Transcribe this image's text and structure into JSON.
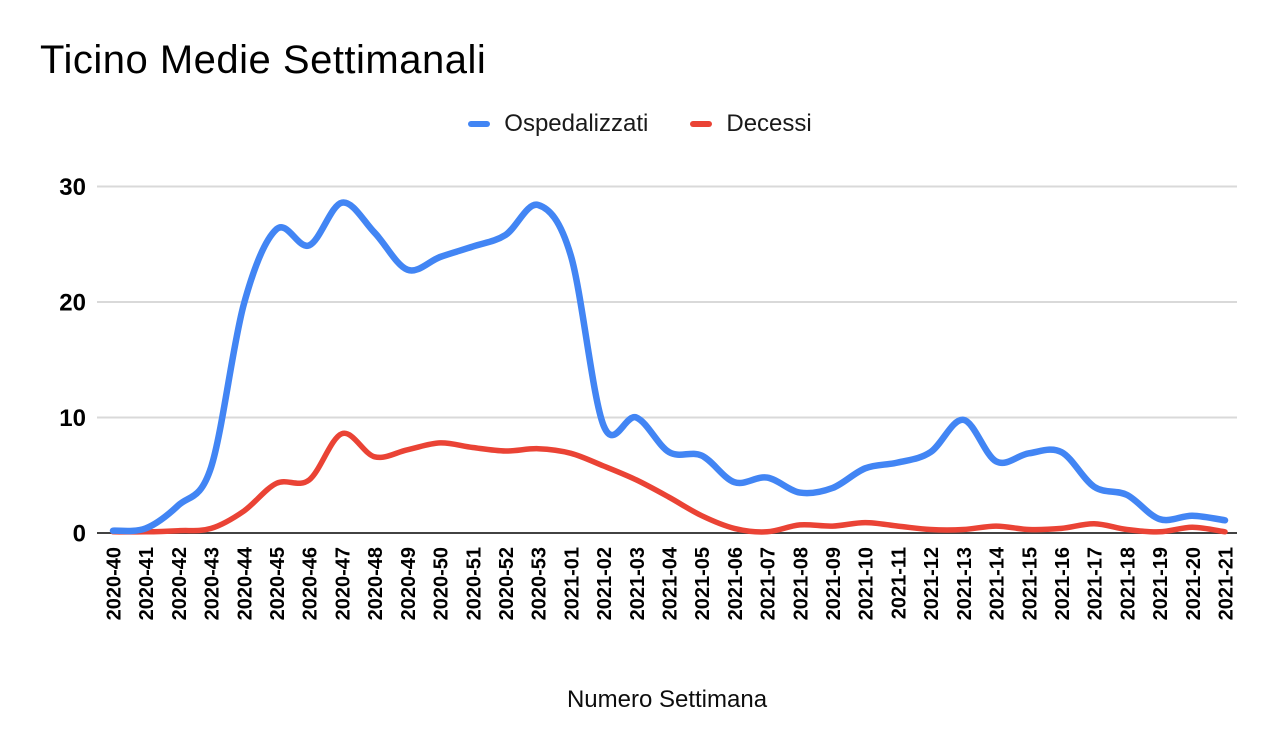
{
  "page": {
    "background": "#ffffff"
  },
  "chart_data": {
    "type": "line",
    "title": "Ticino Medie Settimanali",
    "xlabel": "Numero Settimana",
    "ylabel": "",
    "ylim": [
      0,
      30
    ],
    "yticks": [
      0,
      10,
      20,
      30
    ],
    "grid": true,
    "legend_position": "top",
    "line_style": "smooth",
    "grid_color": "#d9d9d9",
    "axis_color": "#424242",
    "tick_text_color": "#000000",
    "categories": [
      "2020-40",
      "2020-41",
      "2020-42",
      "2020-43",
      "2020-44",
      "2020-45",
      "2020-46",
      "2020-47",
      "2020-48",
      "2020-49",
      "2020-50",
      "2020-51",
      "2020-52",
      "2020-53",
      "2021-01",
      "2021-02",
      "2021-03",
      "2021-04",
      "2021-05",
      "2021-06",
      "2021-07",
      "2021-08",
      "2021-09",
      "2021-10",
      "2021-11",
      "2021-12",
      "2021-13",
      "2021-14",
      "2021-15",
      "2021-16",
      "2021-17",
      "2021-18",
      "2021-19",
      "2021-20",
      "2021-21"
    ],
    "series": [
      {
        "name": "Ospedalizzati",
        "color": "#4285F4",
        "values": [
          0.2,
          0.4,
          2.4,
          5.7,
          19.8,
          26.3,
          24.9,
          28.6,
          26.0,
          22.8,
          23.9,
          24.8,
          25.8,
          28.4,
          24.0,
          9.3,
          10.0,
          7.0,
          6.7,
          4.4,
          4.8,
          3.5,
          3.9,
          5.6,
          6.1,
          7.0,
          9.8,
          6.2,
          6.9,
          7.0,
          4.0,
          3.3,
          1.2,
          1.5,
          1.1
        ]
      },
      {
        "name": "Decessi",
        "color": "#EA4335",
        "values": [
          0.1,
          0.1,
          0.2,
          0.4,
          1.9,
          4.3,
          4.6,
          8.6,
          6.6,
          7.2,
          7.8,
          7.4,
          7.1,
          7.3,
          6.9,
          5.8,
          4.6,
          3.1,
          1.5,
          0.4,
          0.1,
          0.7,
          0.6,
          0.9,
          0.6,
          0.3,
          0.3,
          0.6,
          0.3,
          0.4,
          0.8,
          0.3,
          0.1,
          0.5,
          0.1
        ]
      }
    ]
  }
}
